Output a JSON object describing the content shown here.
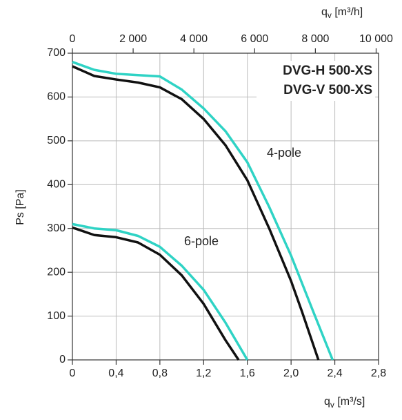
{
  "chart_data": {
    "type": "line",
    "xlabel": {
      "main": "q",
      "sub": "v",
      "unit": " [m³/s]"
    },
    "x2label": {
      "main": "q",
      "sub": "v",
      "unit": " [m³/h]"
    },
    "ylabel": "Ps [Pa]",
    "xlim": [
      0,
      2.8
    ],
    "xticks": [
      0,
      {
        "value": 0.4,
        "label": "0,4"
      },
      {
        "value": 0.8,
        "label": "0,8"
      },
      {
        "value": 1.2,
        "label": "1,2"
      },
      {
        "value": 1.6,
        "label": "1,6"
      },
      {
        "value": 2.0,
        "label": "2,0"
      },
      {
        "value": 2.4,
        "label": "2,4"
      },
      {
        "value": 2.8,
        "label": "2,8"
      }
    ],
    "x2lim": [
      0,
      10080
    ],
    "x2ticks": [
      0,
      {
        "value": 2000,
        "label": "2 000"
      },
      {
        "value": 4000,
        "label": "4 000"
      },
      {
        "value": 6000,
        "label": "6 000"
      },
      {
        "value": 8000,
        "label": "8 000"
      },
      {
        "value": 10000,
        "label": "10 000"
      }
    ],
    "ylim": [
      0,
      700
    ],
    "yticks": [
      0,
      100,
      200,
      300,
      400,
      500,
      600,
      700
    ],
    "grid": true,
    "annotations": [
      "4-pole",
      "6-pole"
    ],
    "series": [
      {
        "name": "DVG-H 500-XS",
        "color": "#2fd3c5",
        "curves": [
          {
            "x": [
              0,
              0.2,
              0.4,
              0.6,
              0.8,
              1.0,
              1.2,
              1.4,
              1.6,
              1.8,
              2.0,
              2.2,
              2.38
            ],
            "values": [
              680,
              662,
              653,
              650,
              647,
              617,
              574,
              522,
              451,
              349,
              238,
              112,
              0
            ]
          },
          {
            "x": [
              0,
              0.2,
              0.4,
              0.6,
              0.8,
              1.0,
              1.2,
              1.4,
              1.6
            ],
            "values": [
              310,
              300,
              296,
              283,
              258,
              215,
              160,
              85,
              0
            ]
          }
        ]
      },
      {
        "name": "DVG-V 500-XS",
        "color": "#111111",
        "curves": [
          {
            "x": [
              0,
              0.2,
              0.4,
              0.6,
              0.8,
              1.0,
              1.2,
              1.4,
              1.6,
              1.8,
              2.0,
              2.1,
              2.25
            ],
            "values": [
              670,
              648,
              640,
              633,
              622,
              595,
              550,
              490,
              410,
              300,
              180,
              110,
              0
            ]
          },
          {
            "x": [
              0,
              0.2,
              0.4,
              0.6,
              0.8,
              1.0,
              1.2,
              1.4,
              1.52
            ],
            "values": [
              302,
              285,
              280,
              268,
              240,
              193,
              128,
              45,
              0
            ]
          }
        ]
      }
    ]
  }
}
